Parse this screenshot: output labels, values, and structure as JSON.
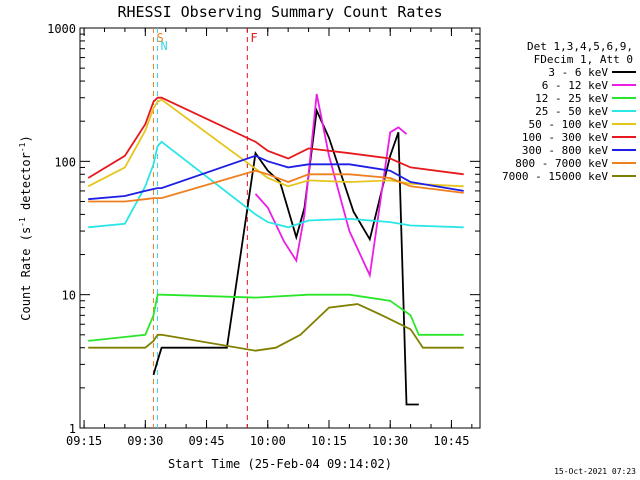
{
  "chart_data": {
    "type": "line",
    "title": "RHESSI Observing Summary Count Rates",
    "xlabel": "Start Time (25-Feb-04 09:14:02)",
    "ylabel": "Count Rate (s-1 detector-1)",
    "ylabel_parts": {
      "pre": "Count Rate (s",
      "sup1": "-1",
      "mid": " detector",
      "sup2": "-1",
      "post": ")"
    },
    "xlim": [
      "09:14",
      "10:52"
    ],
    "ylim": [
      1,
      1000
    ],
    "yscale": "log",
    "x_ticks": [
      "09:15",
      "09:30",
      "09:45",
      "10:00",
      "10:15",
      "10:30",
      "10:45"
    ],
    "y_ticks": [
      "1",
      "10",
      "100",
      "1000"
    ],
    "legend_position": "right",
    "legend_header": [
      "Det 1,3,4,5,6,9,",
      "FDecim 1, Att 0"
    ],
    "timestamp": "15-Oct-2021 07:23",
    "flags": [
      {
        "letter": "S",
        "time": "09:32",
        "color": "#f07f1f"
      },
      {
        "letter": "N",
        "time": "09:33",
        "color": "#3ad6e6"
      },
      {
        "letter": "F",
        "time": "09:55",
        "color": "#e6191e"
      }
    ],
    "series": [
      {
        "name": "3 - 6 keV",
        "color": "#000000",
        "points": [
          [
            "09:32",
            2.5
          ],
          [
            "09:33",
            3.2
          ],
          [
            "09:34",
            4
          ],
          [
            "09:50",
            4
          ],
          [
            "09:57",
            115
          ],
          [
            "10:00",
            85
          ],
          [
            "10:03",
            70
          ],
          [
            "10:07",
            27
          ],
          [
            "10:09",
            45
          ],
          [
            "10:12",
            240
          ],
          [
            "10:15",
            150
          ],
          [
            "10:21",
            42
          ],
          [
            "10:25",
            26
          ],
          [
            "10:30",
            110
          ],
          [
            "10:32",
            165
          ],
          [
            "10:34",
            1.5
          ],
          [
            "10:37",
            1.5
          ]
        ]
      },
      {
        "name": "6 - 12 keV",
        "color": "#ea1ee6",
        "points": [
          [
            "09:57",
            57
          ],
          [
            "10:00",
            45
          ],
          [
            "10:04",
            25
          ],
          [
            "10:07",
            18
          ],
          [
            "10:09",
            40
          ],
          [
            "10:12",
            320
          ],
          [
            "10:15",
            110
          ],
          [
            "10:20",
            30
          ],
          [
            "10:25",
            14
          ],
          [
            "10:30",
            165
          ],
          [
            "10:32",
            180
          ],
          [
            "10:34",
            160
          ]
        ]
      },
      {
        "name": "12 - 25 keV",
        "color": "#2ae62a",
        "points": [
          [
            "09:16",
            4.5
          ],
          [
            "09:30",
            5
          ],
          [
            "09:32",
            7
          ],
          [
            "09:33",
            10
          ],
          [
            "09:34",
            10
          ],
          [
            "09:57",
            9.5
          ],
          [
            "10:10",
            10
          ],
          [
            "10:20",
            10
          ],
          [
            "10:30",
            9
          ],
          [
            "10:35",
            7
          ],
          [
            "10:37",
            5
          ],
          [
            "10:48",
            5
          ]
        ]
      },
      {
        "name": "25 - 50 keV",
        "color": "#2ae6e6",
        "points": [
          [
            "09:16",
            32
          ],
          [
            "09:25",
            34
          ],
          [
            "09:30",
            65
          ],
          [
            "09:32",
            95
          ],
          [
            "09:33",
            130
          ],
          [
            "09:34",
            140
          ],
          [
            "09:57",
            40
          ],
          [
            "10:00",
            35
          ],
          [
            "10:05",
            32
          ],
          [
            "10:10",
            36
          ],
          [
            "10:20",
            37
          ],
          [
            "10:30",
            35
          ],
          [
            "10:35",
            33
          ],
          [
            "10:48",
            32
          ]
        ]
      },
      {
        "name": "50 - 100 keV",
        "color": "#e6c61e",
        "points": [
          [
            "09:16",
            65
          ],
          [
            "09:25",
            90
          ],
          [
            "09:30",
            170
          ],
          [
            "09:32",
            250
          ],
          [
            "09:33",
            280
          ],
          [
            "09:34",
            290
          ],
          [
            "09:57",
            88
          ],
          [
            "10:00",
            75
          ],
          [
            "10:05",
            65
          ],
          [
            "10:10",
            72
          ],
          [
            "10:20",
            70
          ],
          [
            "10:30",
            72
          ],
          [
            "10:35",
            68
          ],
          [
            "10:48",
            65
          ]
        ]
      },
      {
        "name": "100 - 300 keV",
        "color": "#e6191e",
        "points": [
          [
            "09:16",
            75
          ],
          [
            "09:25",
            110
          ],
          [
            "09:30",
            190
          ],
          [
            "09:32",
            280
          ],
          [
            "09:33",
            300
          ],
          [
            "09:34",
            300
          ],
          [
            "09:57",
            140
          ],
          [
            "10:00",
            120
          ],
          [
            "10:05",
            105
          ],
          [
            "10:10",
            125
          ],
          [
            "10:20",
            115
          ],
          [
            "10:30",
            105
          ],
          [
            "10:35",
            90
          ],
          [
            "10:48",
            80
          ]
        ]
      },
      {
        "name": "300 - 800 keV",
        "color": "#1e1ee6",
        "points": [
          [
            "09:16",
            52
          ],
          [
            "09:25",
            55
          ],
          [
            "09:30",
            60
          ],
          [
            "09:32",
            62
          ],
          [
            "09:33",
            63
          ],
          [
            "09:34",
            63
          ],
          [
            "09:57",
            110
          ],
          [
            "10:00",
            100
          ],
          [
            "10:05",
            90
          ],
          [
            "10:10",
            95
          ],
          [
            "10:20",
            95
          ],
          [
            "10:30",
            85
          ],
          [
            "10:35",
            70
          ],
          [
            "10:48",
            60
          ]
        ]
      },
      {
        "name": "800 - 7000 keV",
        "color": "#f07f1f",
        "points": [
          [
            "09:16",
            50
          ],
          [
            "09:25",
            50
          ],
          [
            "09:30",
            52
          ],
          [
            "09:32",
            53
          ],
          [
            "09:33",
            53
          ],
          [
            "09:34",
            53
          ],
          [
            "09:57",
            85
          ],
          [
            "10:00",
            80
          ],
          [
            "10:05",
            70
          ],
          [
            "10:10",
            80
          ],
          [
            "10:20",
            80
          ],
          [
            "10:30",
            75
          ],
          [
            "10:35",
            65
          ],
          [
            "10:48",
            58
          ]
        ]
      },
      {
        "name": "7000 - 15000 keV",
        "color": "#808000",
        "points": [
          [
            "09:16",
            4
          ],
          [
            "09:30",
            4
          ],
          [
            "09:32",
            4.5
          ],
          [
            "09:33",
            5
          ],
          [
            "09:34",
            5
          ],
          [
            "09:57",
            3.8
          ],
          [
            "10:02",
            4
          ],
          [
            "10:08",
            5
          ],
          [
            "10:15",
            8
          ],
          [
            "10:22",
            8.5
          ],
          [
            "10:28",
            7
          ],
          [
            "10:35",
            5.5
          ],
          [
            "10:38",
            4
          ],
          [
            "10:48",
            4
          ]
        ]
      }
    ]
  }
}
